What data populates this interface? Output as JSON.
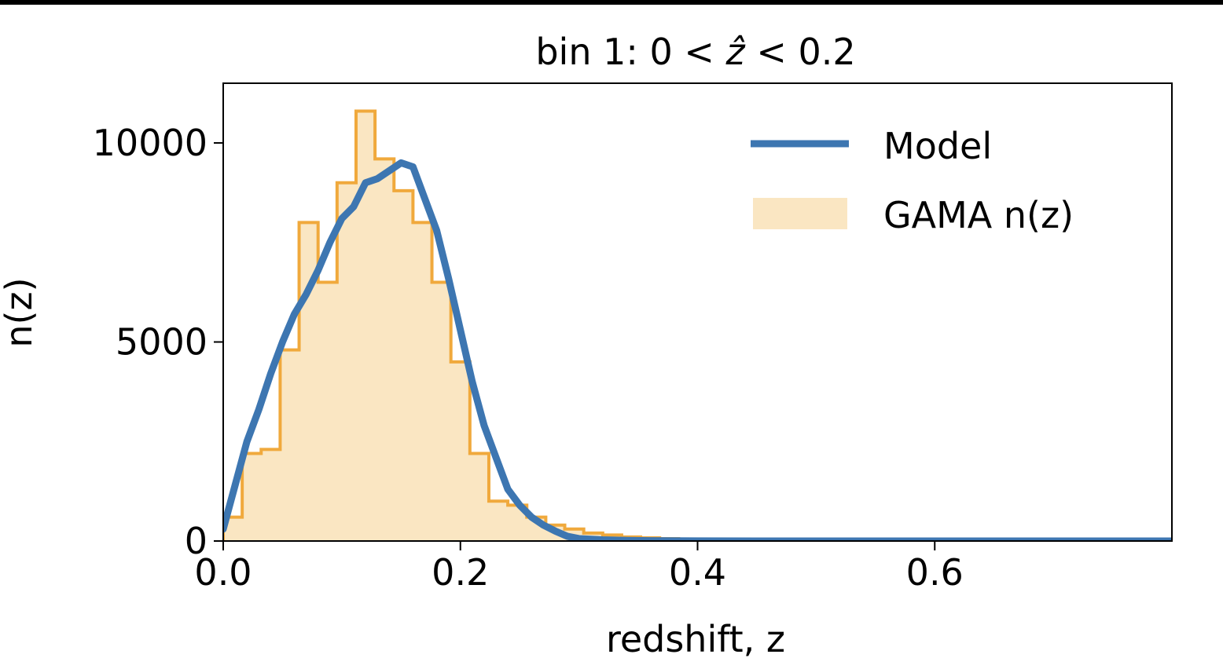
{
  "chart_data": {
    "type": "histogram+line",
    "title_prefix": "bin 1: 0 < ",
    "title_var": "ẑ",
    "title_suffix": " < 0.2",
    "xlabel": "redshift, z",
    "ylabel": "n(z)",
    "xlim": [
      0.0,
      0.8
    ],
    "ylim": [
      0,
      11500
    ],
    "xticks": [
      0.0,
      0.2,
      0.4,
      0.6
    ],
    "xtick_labels": [
      "0.0",
      "0.2",
      "0.4",
      "0.6"
    ],
    "yticks": [
      0,
      5000,
      10000
    ],
    "ytick_labels": [
      "0",
      "5000",
      "10000"
    ],
    "legend": {
      "position": "top-right",
      "entries": [
        "Model",
        "GAMA n(z)"
      ]
    },
    "colors": {
      "model": "#3d76b1",
      "hist_fill": "#fae6c2",
      "hist_edge": "#f0a93c",
      "axes": "#000000"
    },
    "histogram": {
      "name": "GAMA n(z)",
      "bin_width": 0.016,
      "bin_edges_start": 0.0,
      "counts": [
        600,
        2200,
        2300,
        4800,
        8000,
        6500,
        9000,
        10800,
        9600,
        8800,
        8000,
        6500,
        4500,
        2200,
        1000,
        900,
        600,
        400,
        300,
        200,
        150,
        100,
        80,
        60,
        40,
        30,
        20,
        15,
        10,
        5,
        5,
        0,
        0,
        0,
        0,
        0,
        0,
        0,
        0,
        0,
        0,
        0,
        0,
        0,
        0,
        0,
        0,
        0,
        0,
        0
      ]
    },
    "series": [
      {
        "name": "Model",
        "x": [
          0.0,
          0.01,
          0.02,
          0.03,
          0.04,
          0.05,
          0.06,
          0.07,
          0.08,
          0.09,
          0.1,
          0.11,
          0.12,
          0.13,
          0.14,
          0.15,
          0.16,
          0.17,
          0.18,
          0.19,
          0.2,
          0.21,
          0.22,
          0.23,
          0.24,
          0.25,
          0.26,
          0.27,
          0.28,
          0.29,
          0.3,
          0.32,
          0.34,
          0.36,
          0.38,
          0.4,
          0.45,
          0.5,
          0.6,
          0.7,
          0.8
        ],
        "y": [
          300,
          1400,
          2500,
          3300,
          4200,
          5000,
          5700,
          6200,
          6800,
          7500,
          8100,
          8400,
          9000,
          9100,
          9300,
          9500,
          9400,
          8600,
          7800,
          6600,
          5300,
          4000,
          2900,
          2100,
          1300,
          900,
          600,
          400,
          250,
          120,
          60,
          30,
          15,
          8,
          4,
          2,
          1,
          0,
          0,
          0,
          0
        ]
      }
    ]
  }
}
